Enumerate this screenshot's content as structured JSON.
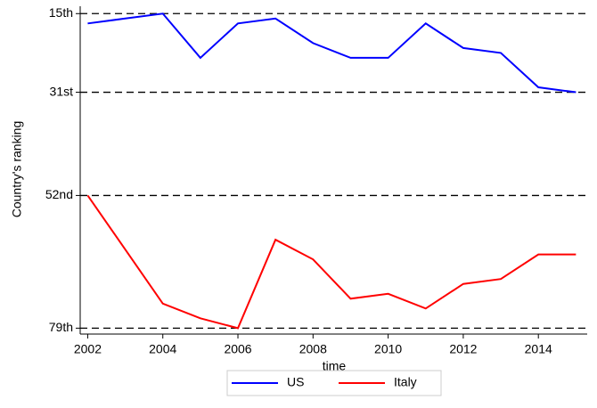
{
  "chart_data": {
    "type": "line",
    "x_label": "time",
    "y_label": "Country's ranking",
    "x": [
      2002,
      2003,
      2004,
      2005,
      2006,
      2007,
      2008,
      2009,
      2010,
      2011,
      2012,
      2013,
      2014,
      2015
    ],
    "series": [
      {
        "name": "US",
        "color": "#0000ff",
        "values": [
          17,
          16,
          15,
          24,
          17,
          16,
          21,
          24,
          24,
          17,
          22,
          23,
          30,
          31
        ]
      },
      {
        "name": "Italy",
        "color": "#ff0000",
        "values": [
          52,
          63,
          74,
          77,
          79,
          61,
          65,
          73,
          72,
          75,
          70,
          69,
          64,
          64
        ]
      }
    ],
    "xlim": [
      2001.8,
      2015.3
    ],
    "xticks": [
      2002,
      2004,
      2006,
      2008,
      2010,
      2012,
      2014
    ],
    "ylim": [
      13.5,
      80.2
    ],
    "y_inverted": true,
    "yticks": [
      {
        "value": 15,
        "label": "15th"
      },
      {
        "value": 31,
        "label": "31st"
      },
      {
        "value": 52,
        "label": "52nd"
      },
      {
        "value": 79,
        "label": "79th"
      }
    ],
    "grid": true
  }
}
